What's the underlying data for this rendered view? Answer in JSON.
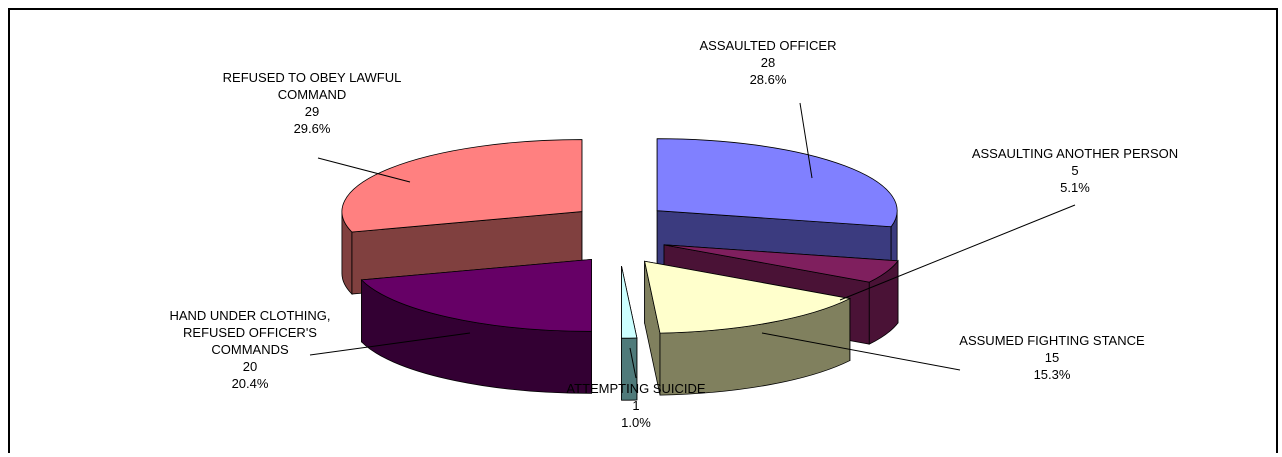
{
  "chart_data": {
    "type": "pie",
    "title": "",
    "three_d": true,
    "exploded": true,
    "slices": [
      {
        "label": "ASSAULTED OFFICER",
        "value": 28,
        "percent": "28.6%",
        "value_text": "28",
        "color": "#8080ff",
        "side": "#3b3b7f"
      },
      {
        "label": "ASSAULTING ANOTHER PERSON",
        "value": 5,
        "percent": "5.1%",
        "value_text": "5",
        "color": "#7f1f5e",
        "side": "#4a1236"
      },
      {
        "label": "ASSUMED FIGHTING STANCE",
        "value": 15,
        "percent": "15.3%",
        "value_text": "15",
        "color": "#ffffcc",
        "side": "#80805e"
      },
      {
        "label": "ATTEMPTING SUICIDE",
        "value": 1,
        "percent": "1.0%",
        "value_text": "1",
        "color": "#ccffff",
        "side": "#4f7a7a"
      },
      {
        "label": "HAND UNDER CLOTHING, REFUSED OFFICER'S COMMANDS",
        "value": 20,
        "percent": "20.4%",
        "value_text": "20",
        "color": "#660066",
        "side": "#330033"
      },
      {
        "label": "REFUSED TO OBEY LAWFUL COMMAND",
        "value": 29,
        "percent": "29.6%",
        "value_text": "29",
        "color": "#ff8080",
        "side": "#80403f"
      }
    ],
    "label_lines": [
      [
        "ASSAULTED OFFICER"
      ],
      [
        "ASSAULTING ANOTHER PERSON"
      ],
      [
        "ASSUMED FIGHTING STANCE"
      ],
      [
        "ATTEMPTING SUICIDE"
      ],
      [
        "HAND UNDER CLOTHING,",
        "REFUSED OFFICER'S",
        "COMMANDS"
      ],
      [
        "REFUSED TO OBEY LAWFUL",
        "COMMAND"
      ]
    ]
  }
}
